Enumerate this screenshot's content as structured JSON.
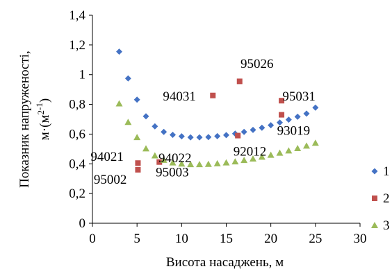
{
  "chart_data": {
    "type": "scatter",
    "xlabel": "Висота насаджень, м",
    "ylabel_line1": "Показник напруженості,",
    "ylabel_line2": "м·(м",
    "ylabel_sup": "2",
    "ylabel_sub": "-1",
    "ylabel_close": ")",
    "xlim": [
      0,
      30
    ],
    "ylim": [
      0,
      1.4
    ],
    "x_ticks": [
      0,
      5,
      10,
      15,
      20,
      25,
      30
    ],
    "y_ticks": [
      0,
      0.2,
      0.4,
      0.6,
      0.8,
      1,
      1.2,
      1.4
    ],
    "x_tick_labels": [
      "0",
      "5",
      "10",
      "15",
      "20",
      "25",
      "30"
    ],
    "y_tick_labels": [
      "0",
      "0,2",
      "0,4",
      "0,6",
      "0,8",
      "1",
      "1,2",
      "1,4"
    ],
    "grid": false,
    "legend_position": "right",
    "series": [
      {
        "name": "1",
        "marker": "diamond",
        "color": "#4472c4",
        "points": [
          [
            3,
            1.155
          ],
          [
            4,
            0.975
          ],
          [
            5,
            0.832
          ],
          [
            6,
            0.72
          ],
          [
            7,
            0.652
          ],
          [
            8,
            0.615
          ],
          [
            9,
            0.595
          ],
          [
            10,
            0.585
          ],
          [
            11,
            0.578
          ],
          [
            12,
            0.578
          ],
          [
            13,
            0.58
          ],
          [
            14,
            0.586
          ],
          [
            15,
            0.593
          ],
          [
            16,
            0.603
          ],
          [
            17,
            0.615
          ],
          [
            18,
            0.628
          ],
          [
            19,
            0.643
          ],
          [
            20,
            0.66
          ],
          [
            21,
            0.678
          ],
          [
            22,
            0.697
          ],
          [
            23,
            0.717
          ],
          [
            24,
            0.738
          ],
          [
            25,
            0.778
          ]
        ]
      },
      {
        "name": "2",
        "marker": "square",
        "color": "#c0504d",
        "points": [
          [
            5.1,
            0.405
          ],
          [
            5.1,
            0.36
          ],
          [
            7.5,
            0.412
          ],
          [
            13.5,
            0.86
          ],
          [
            16.5,
            0.955
          ],
          [
            16.3,
            0.59
          ],
          [
            21.2,
            0.825
          ],
          [
            21.2,
            0.73
          ]
        ]
      },
      {
        "name": "3",
        "marker": "triangle",
        "color": "#9bbb59",
        "points": [
          [
            3,
            0.805
          ],
          [
            4,
            0.68
          ],
          [
            5,
            0.578
          ],
          [
            6,
            0.502
          ],
          [
            7,
            0.455
          ],
          [
            8,
            0.425
          ],
          [
            9,
            0.408
          ],
          [
            10,
            0.4
          ],
          [
            11,
            0.396
          ],
          [
            12,
            0.396
          ],
          [
            13,
            0.398
          ],
          [
            14,
            0.402
          ],
          [
            15,
            0.408
          ],
          [
            16,
            0.415
          ],
          [
            17,
            0.424
          ],
          [
            18,
            0.434
          ],
          [
            19,
            0.446
          ],
          [
            20,
            0.459
          ],
          [
            21,
            0.473
          ],
          [
            22,
            0.488
          ],
          [
            23,
            0.504
          ],
          [
            24,
            0.521
          ],
          [
            25,
            0.54
          ]
        ]
      }
    ],
    "annotations": [
      {
        "text": "95026",
        "x": 16.6,
        "y": 1.045
      },
      {
        "text": "94031",
        "x": 7.9,
        "y": 0.825
      },
      {
        "text": "95031",
        "x": 21.3,
        "y": 0.825
      },
      {
        "text": "93019",
        "x": 20.7,
        "y": 0.595
      },
      {
        "text": "92012",
        "x": 15.8,
        "y": 0.455
      },
      {
        "text": "94021",
        "x": -0.2,
        "y": 0.42
      },
      {
        "text": "94022",
        "x": 7.4,
        "y": 0.41
      },
      {
        "text": "95003",
        "x": 7.1,
        "y": 0.315
      },
      {
        "text": "95002",
        "x": 0.15,
        "y": 0.265
      }
    ]
  }
}
